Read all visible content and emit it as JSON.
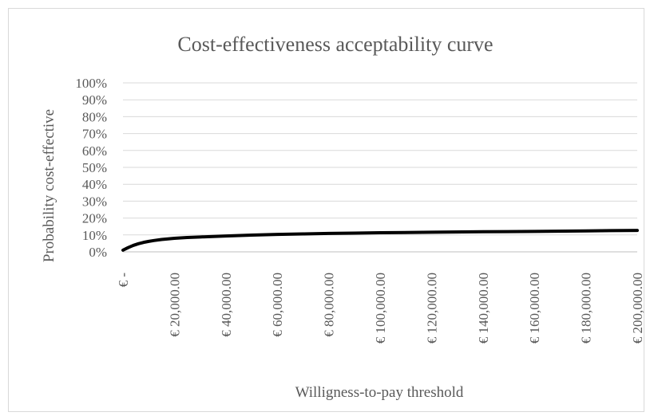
{
  "chart_data": {
    "type": "line",
    "title": "Cost-effectiveness acceptability curve",
    "xlabel": "Willigness-to-pay threshold",
    "ylabel": "Probability cost-effective",
    "ylim": [
      0,
      1
    ],
    "xlim": [
      0,
      200000
    ],
    "y_ticks": [
      {
        "value": 0,
        "label": "0%"
      },
      {
        "value": 0.1,
        "label": "10%"
      },
      {
        "value": 0.2,
        "label": "20%"
      },
      {
        "value": 0.3,
        "label": "30%"
      },
      {
        "value": 0.4,
        "label": "40%"
      },
      {
        "value": 0.5,
        "label": "50%"
      },
      {
        "value": 0.6,
        "label": "60%"
      },
      {
        "value": 0.7,
        "label": "70%"
      },
      {
        "value": 0.8,
        "label": "80%"
      },
      {
        "value": 0.9,
        "label": "90%"
      },
      {
        "value": 1.0,
        "label": "100%"
      }
    ],
    "x_ticks": [
      {
        "value": 0,
        "label": "€ -"
      },
      {
        "value": 20000,
        "label": "€ 20,000.00"
      },
      {
        "value": 40000,
        "label": "€ 40,000.00"
      },
      {
        "value": 60000,
        "label": "€ 60,000.00"
      },
      {
        "value": 80000,
        "label": "€ 80,000.00"
      },
      {
        "value": 100000,
        "label": "€ 100,000.00"
      },
      {
        "value": 120000,
        "label": "€ 120,000.00"
      },
      {
        "value": 140000,
        "label": "€ 140,000.00"
      },
      {
        "value": 160000,
        "label": "€ 160,000.00"
      },
      {
        "value": 180000,
        "label": "€ 180,000.00"
      },
      {
        "value": 200000,
        "label": "€ 200,000.00"
      }
    ],
    "grid": true,
    "legend": "none",
    "series": [
      {
        "color": "#000000",
        "x": [
          0,
          2000,
          4000,
          6000,
          8000,
          10000,
          12000,
          15000,
          20000,
          25000,
          30000,
          40000,
          50000,
          60000,
          70000,
          80000,
          90000,
          100000,
          120000,
          140000,
          160000,
          180000,
          200000
        ],
        "y": [
          0.01,
          0.025,
          0.038,
          0.048,
          0.056,
          0.062,
          0.067,
          0.073,
          0.08,
          0.085,
          0.088,
          0.094,
          0.099,
          0.103,
          0.106,
          0.109,
          0.111,
          0.113,
          0.116,
          0.119,
          0.121,
          0.124,
          0.127
        ]
      }
    ]
  }
}
